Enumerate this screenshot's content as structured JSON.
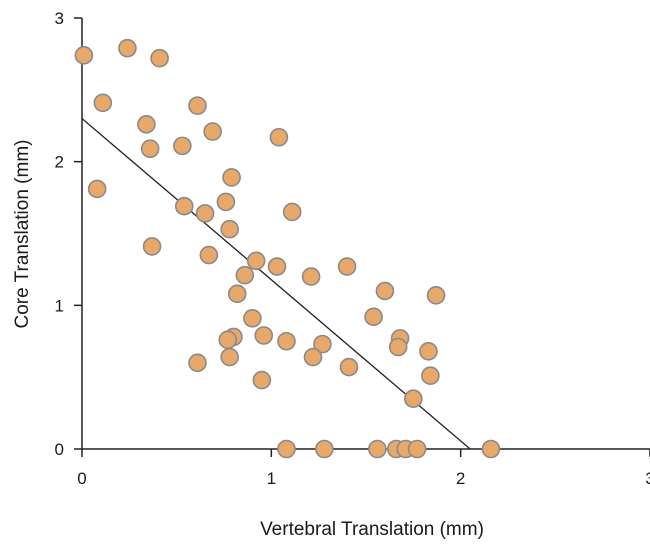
{
  "chart_data": {
    "type": "scatter",
    "title": "",
    "xlabel": "Vertebral Translation (mm)",
    "ylabel": "Core Translation (mm)",
    "xlim": [
      0,
      3
    ],
    "ylim": [
      0,
      3
    ],
    "x_ticks": [
      "0",
      "1",
      "2",
      "3"
    ],
    "y_ticks": [
      "0",
      "1",
      "2",
      "3"
    ],
    "grid": false,
    "legend": "none",
    "colors": {
      "point_fill": "#e8a86a",
      "point_stroke": "#8a8a8a",
      "axis": "#222222",
      "trendline": "#222222"
    },
    "trendline": {
      "x": [
        0,
        2.05
      ],
      "y": [
        2.3,
        0.0
      ]
    },
    "series": [
      {
        "points": [
          [
            0.01,
            2.74
          ],
          [
            0.24,
            2.79
          ],
          [
            0.41,
            2.72
          ],
          [
            0.11,
            2.41
          ],
          [
            0.61,
            2.39
          ],
          [
            0.34,
            2.26
          ],
          [
            0.69,
            2.21
          ],
          [
            1.04,
            2.17
          ],
          [
            0.36,
            2.09
          ],
          [
            0.53,
            2.11
          ],
          [
            0.79,
            1.89
          ],
          [
            0.08,
            1.81
          ],
          [
            0.54,
            1.69
          ],
          [
            0.65,
            1.64
          ],
          [
            0.76,
            1.72
          ],
          [
            1.11,
            1.65
          ],
          [
            0.78,
            1.53
          ],
          [
            0.37,
            1.41
          ],
          [
            0.67,
            1.35
          ],
          [
            0.92,
            1.31
          ],
          [
            1.03,
            1.27
          ],
          [
            0.86,
            1.21
          ],
          [
            1.21,
            1.2
          ],
          [
            1.4,
            1.27
          ],
          [
            1.6,
            1.1
          ],
          [
            1.87,
            1.07
          ],
          [
            0.82,
            1.08
          ],
          [
            1.54,
            0.92
          ],
          [
            0.9,
            0.91
          ],
          [
            0.8,
            0.78
          ],
          [
            0.96,
            0.79
          ],
          [
            0.77,
            0.76
          ],
          [
            1.08,
            0.75
          ],
          [
            1.27,
            0.73
          ],
          [
            1.68,
            0.77
          ],
          [
            1.67,
            0.71
          ],
          [
            1.83,
            0.68
          ],
          [
            0.78,
            0.64
          ],
          [
            1.22,
            0.64
          ],
          [
            0.61,
            0.6
          ],
          [
            1.41,
            0.57
          ],
          [
            1.84,
            0.51
          ],
          [
            0.95,
            0.48
          ],
          [
            1.75,
            0.35
          ],
          [
            1.08,
            0.0
          ],
          [
            1.28,
            0.0
          ],
          [
            1.56,
            0.0
          ],
          [
            1.66,
            0.0
          ],
          [
            1.71,
            0.0
          ],
          [
            1.77,
            0.0
          ],
          [
            2.16,
            0.0
          ]
        ]
      }
    ]
  }
}
